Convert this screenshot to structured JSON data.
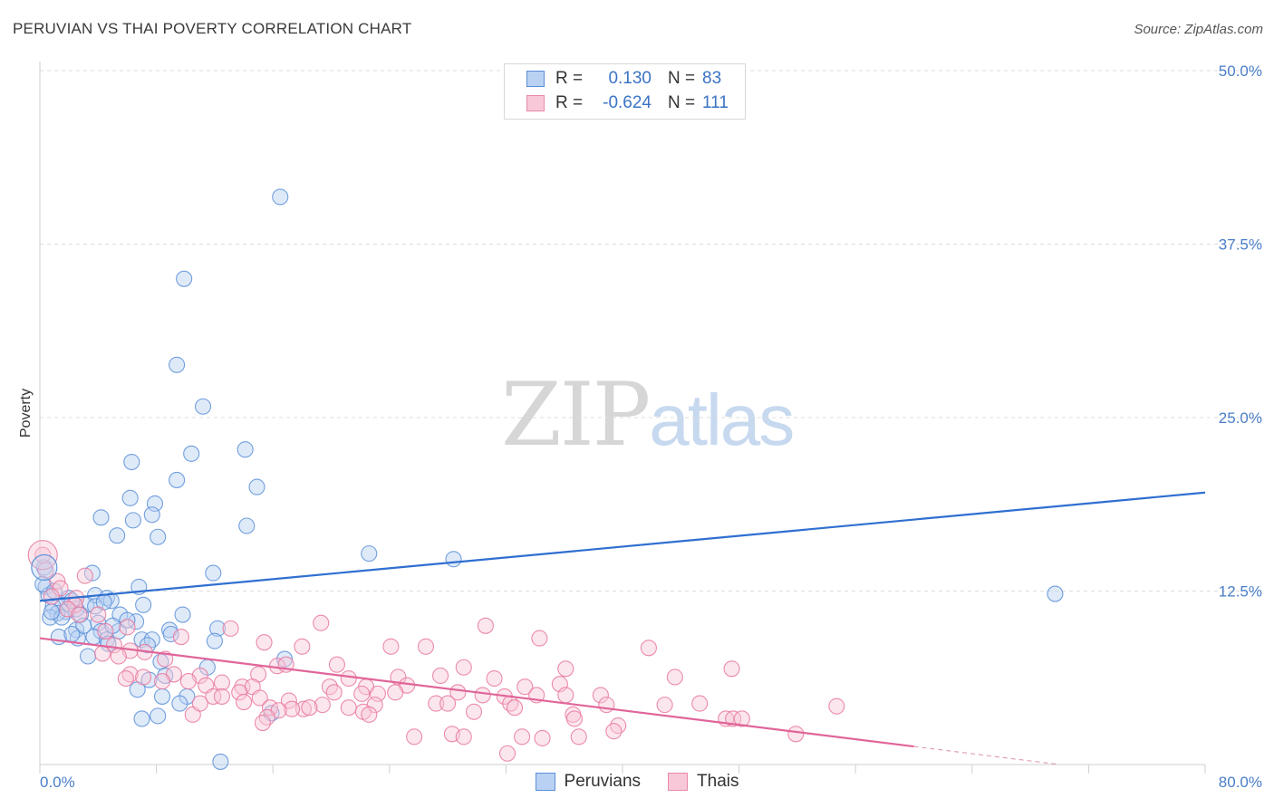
{
  "header": {
    "title": "PERUVIAN VS THAI POVERTY CORRELATION CHART",
    "source": "Source: ZipAtlas.com"
  },
  "watermark": {
    "zip": "ZIP",
    "atlas": "atlas"
  },
  "legend": {
    "rows": [
      {
        "swatch_color": "#b9d1f2",
        "border_color": "#5a8fd8",
        "r_label": "R =",
        "r_value": "0.130",
        "n_label": "N =",
        "n_value": "83"
      },
      {
        "swatch_color": "#f8c8d8",
        "border_color": "#e889a8",
        "r_label": "R =",
        "r_value": "-0.624",
        "n_label": "N =",
        "n_value": "111"
      }
    ]
  },
  "bottom_legend": [
    {
      "label": "Peruvians",
      "swatch_color": "#b9d1f2",
      "border_color": "#5a8fd8"
    },
    {
      "label": "Thais",
      "swatch_color": "#f8c8d8",
      "border_color": "#e889a8"
    }
  ],
  "chart_data": {
    "type": "scatter",
    "title": "PERUVIAN VS THAI POVERTY CORRELATION CHART",
    "xlabel": "",
    "ylabel": "Poverty",
    "xlim": [
      0,
      80
    ],
    "ylim": [
      0,
      50
    ],
    "x_tick_labels": [
      {
        "value": 0,
        "label": "0.0%"
      },
      {
        "value": 80,
        "label": "80.0%"
      }
    ],
    "y_tick_labels": [
      {
        "value": 12.5,
        "label": "12.5%"
      },
      {
        "value": 25,
        "label": "25.0%"
      },
      {
        "value": 37.5,
        "label": "37.5%"
      },
      {
        "value": 50,
        "label": "50.0%"
      }
    ],
    "grid": true,
    "legend_position": "top-center",
    "series": [
      {
        "name": "Peruvians",
        "color": "#5a8fd8",
        "fill": "#b9d1f2",
        "trend": {
          "x": [
            0,
            80
          ],
          "y": [
            11.8,
            19.6
          ]
        },
        "points": [
          [
            16.5,
            40.9
          ],
          [
            9.9,
            35.0
          ],
          [
            9.4,
            28.8
          ],
          [
            11.2,
            25.8
          ],
          [
            10.4,
            22.4
          ],
          [
            14.1,
            22.7
          ],
          [
            6.3,
            21.8
          ],
          [
            9.4,
            20.5
          ],
          [
            14.9,
            20.0
          ],
          [
            6.2,
            19.2
          ],
          [
            7.9,
            18.8
          ],
          [
            4.2,
            17.8
          ],
          [
            6.4,
            17.6
          ],
          [
            7.7,
            18.0
          ],
          [
            14.2,
            17.2
          ],
          [
            5.3,
            16.5
          ],
          [
            8.1,
            16.4
          ],
          [
            22.6,
            15.2
          ],
          [
            28.4,
            14.8
          ],
          [
            3.6,
            13.8
          ],
          [
            11.9,
            13.8
          ],
          [
            0.4,
            12.8
          ],
          [
            6.8,
            12.8
          ],
          [
            0.6,
            12.2
          ],
          [
            2.0,
            12.0
          ],
          [
            3.8,
            12.2
          ],
          [
            4.6,
            12.0
          ],
          [
            4.9,
            11.8
          ],
          [
            3.2,
            11.5
          ],
          [
            1.6,
            11.5
          ],
          [
            2.5,
            11.2
          ],
          [
            0.9,
            11.4
          ],
          [
            1.8,
            11.0
          ],
          [
            3.8,
            11.4
          ],
          [
            4.4,
            11.7
          ],
          [
            7.1,
            11.5
          ],
          [
            1.2,
            10.9
          ],
          [
            2.8,
            10.8
          ],
          [
            0.7,
            10.6
          ],
          [
            1.5,
            10.6
          ],
          [
            5.5,
            10.8
          ],
          [
            9.8,
            10.8
          ],
          [
            4.0,
            10.2
          ],
          [
            6.6,
            10.3
          ],
          [
            12.2,
            9.8
          ],
          [
            2.5,
            9.7
          ],
          [
            4.2,
            9.6
          ],
          [
            8.9,
            9.7
          ],
          [
            5.4,
            9.6
          ],
          [
            1.3,
            9.2
          ],
          [
            3.7,
            9.2
          ],
          [
            2.6,
            9.1
          ],
          [
            4.6,
            9.0
          ],
          [
            7.0,
            9.0
          ],
          [
            7.7,
            9.0
          ],
          [
            12.0,
            8.9
          ],
          [
            4.7,
            8.7
          ],
          [
            7.4,
            8.6
          ],
          [
            3.3,
            7.8
          ],
          [
            16.8,
            7.6
          ],
          [
            8.3,
            7.4
          ],
          [
            11.5,
            7.0
          ],
          [
            8.6,
            6.4
          ],
          [
            7.5,
            6.1
          ],
          [
            6.7,
            5.4
          ],
          [
            8.4,
            4.9
          ],
          [
            10.1,
            4.9
          ],
          [
            9.6,
            4.4
          ],
          [
            15.9,
            3.7
          ],
          [
            8.1,
            3.5
          ],
          [
            7.0,
            3.3
          ],
          [
            12.4,
            0.2
          ],
          [
            69.7,
            12.3
          ],
          [
            0.3,
            14.2
          ],
          [
            0.2,
            13.0
          ],
          [
            1.0,
            12.5
          ],
          [
            2.2,
            11.8
          ],
          [
            3.0,
            10.0
          ],
          [
            5.0,
            10.0
          ],
          [
            6.0,
            10.4
          ],
          [
            0.8,
            11.0
          ],
          [
            9.0,
            9.4
          ],
          [
            2.2,
            9.4
          ]
        ]
      },
      {
        "name": "Thais",
        "color": "#e8789f",
        "fill": "#f8c8d8",
        "trend": {
          "x": [
            0,
            60
          ],
          "y": [
            9.1,
            1.3
          ]
        },
        "trend_extension": {
          "x": [
            60,
            70
          ],
          "y": [
            1.3,
            0.0
          ]
        },
        "points": [
          [
            0.2,
            15.1
          ],
          [
            0.4,
            14.0
          ],
          [
            1.2,
            13.2
          ],
          [
            3.1,
            13.6
          ],
          [
            1.4,
            12.7
          ],
          [
            2.5,
            12.0
          ],
          [
            0.8,
            12.1
          ],
          [
            2.4,
            11.5
          ],
          [
            1.9,
            11.2
          ],
          [
            2.7,
            10.8
          ],
          [
            4.0,
            10.8
          ],
          [
            19.3,
            10.2
          ],
          [
            30.6,
            10.0
          ],
          [
            13.1,
            9.8
          ],
          [
            6.0,
            9.9
          ],
          [
            4.5,
            9.6
          ],
          [
            9.7,
            9.2
          ],
          [
            34.3,
            9.1
          ],
          [
            15.4,
            8.8
          ],
          [
            5.1,
            8.6
          ],
          [
            18.0,
            8.5
          ],
          [
            24.1,
            8.5
          ],
          [
            26.5,
            8.5
          ],
          [
            41.8,
            8.4
          ],
          [
            6.2,
            8.2
          ],
          [
            7.2,
            8.1
          ],
          [
            4.3,
            8.0
          ],
          [
            5.4,
            7.8
          ],
          [
            8.6,
            7.6
          ],
          [
            16.3,
            7.1
          ],
          [
            20.4,
            7.2
          ],
          [
            29.1,
            7.0
          ],
          [
            36.1,
            6.9
          ],
          [
            47.5,
            6.9
          ],
          [
            16.9,
            7.2
          ],
          [
            6.2,
            6.5
          ],
          [
            7.1,
            6.3
          ],
          [
            9.2,
            6.5
          ],
          [
            11.0,
            6.4
          ],
          [
            15.0,
            6.5
          ],
          [
            21.2,
            6.2
          ],
          [
            24.6,
            6.3
          ],
          [
            27.5,
            6.4
          ],
          [
            31.2,
            6.2
          ],
          [
            43.6,
            6.3
          ],
          [
            5.9,
            6.2
          ],
          [
            8.4,
            6.0
          ],
          [
            10.2,
            6.0
          ],
          [
            12.5,
            5.9
          ],
          [
            11.4,
            5.7
          ],
          [
            13.9,
            5.6
          ],
          [
            14.6,
            5.6
          ],
          [
            19.9,
            5.6
          ],
          [
            22.4,
            5.6
          ],
          [
            25.2,
            5.7
          ],
          [
            33.3,
            5.6
          ],
          [
            35.7,
            5.8
          ],
          [
            13.7,
            5.2
          ],
          [
            20.2,
            5.2
          ],
          [
            22.1,
            5.1
          ],
          [
            23.2,
            5.1
          ],
          [
            24.4,
            5.2
          ],
          [
            28.7,
            5.2
          ],
          [
            30.4,
            5.0
          ],
          [
            31.9,
            4.9
          ],
          [
            34.1,
            5.0
          ],
          [
            36.1,
            5.0
          ],
          [
            38.5,
            5.0
          ],
          [
            11.9,
            4.9
          ],
          [
            12.5,
            4.9
          ],
          [
            15.1,
            4.8
          ],
          [
            17.1,
            4.6
          ],
          [
            19.4,
            4.3
          ],
          [
            18.1,
            4.0
          ],
          [
            21.2,
            4.1
          ],
          [
            23.0,
            4.3
          ],
          [
            17.3,
            4.0
          ],
          [
            15.8,
            4.1
          ],
          [
            18.5,
            4.1
          ],
          [
            16.4,
            3.9
          ],
          [
            27.2,
            4.4
          ],
          [
            28.0,
            4.4
          ],
          [
            32.3,
            4.4
          ],
          [
            32.6,
            4.1
          ],
          [
            38.9,
            4.3
          ],
          [
            45.3,
            4.4
          ],
          [
            54.7,
            4.2
          ],
          [
            42.9,
            4.3
          ],
          [
            15.6,
            3.4
          ],
          [
            15.3,
            3.0
          ],
          [
            22.2,
            3.8
          ],
          [
            29.8,
            3.8
          ],
          [
            36.6,
            3.6
          ],
          [
            36.7,
            3.3
          ],
          [
            47.1,
            3.3
          ],
          [
            47.6,
            3.3
          ],
          [
            48.2,
            3.3
          ],
          [
            22.6,
            3.6
          ],
          [
            39.7,
            2.8
          ],
          [
            28.3,
            2.2
          ],
          [
            29.1,
            2.0
          ],
          [
            33.1,
            2.0
          ],
          [
            34.5,
            1.9
          ],
          [
            51.9,
            2.2
          ],
          [
            39.4,
            2.4
          ],
          [
            37.0,
            2.0
          ],
          [
            32.1,
            0.8
          ],
          [
            10.5,
            3.6
          ],
          [
            25.7,
            2.0
          ],
          [
            14.0,
            4.5
          ],
          [
            11.0,
            4.4
          ]
        ]
      }
    ]
  }
}
